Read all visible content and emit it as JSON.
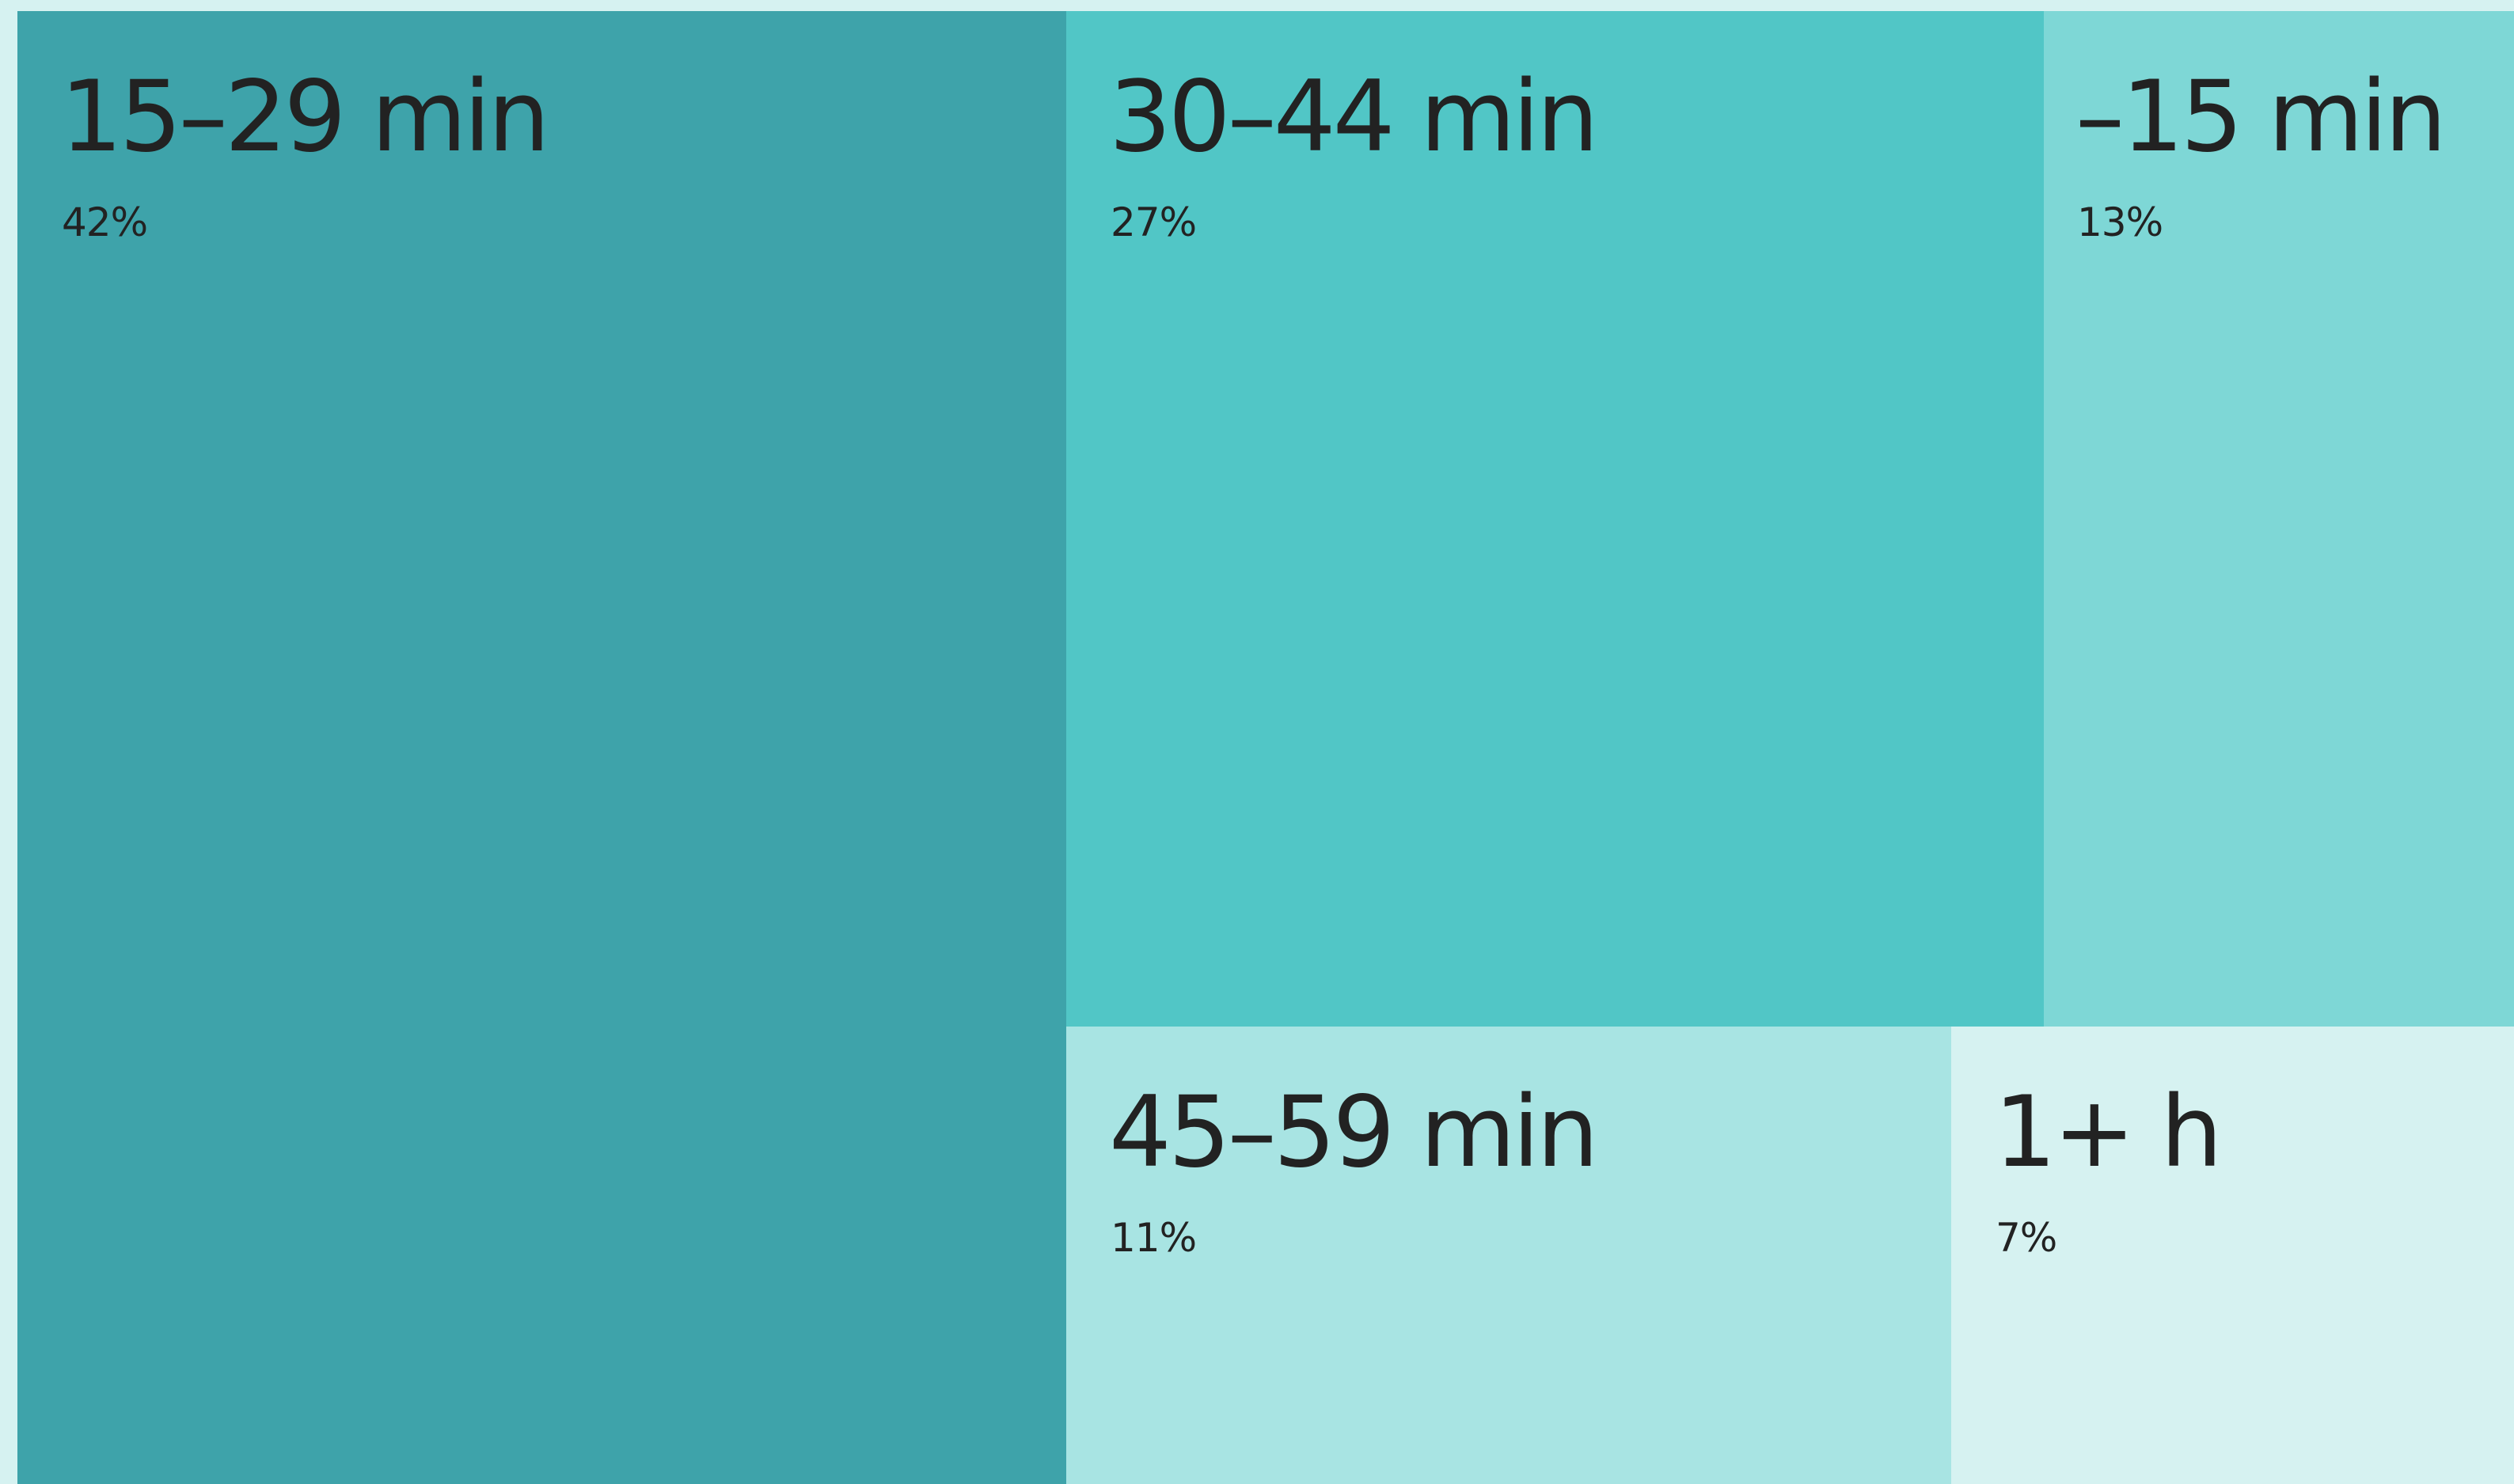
{
  "chart_data": {
    "type": "treemap",
    "title": "",
    "items": [
      {
        "label": "15–29 min",
        "value": 42,
        "value_label": "42%",
        "color": "#3ea3aa"
      },
      {
        "label": "30–44 min",
        "value": 27,
        "value_label": "27%",
        "color": "#51c6c6"
      },
      {
        "label": "–15 min",
        "value": 13,
        "value_label": "13%",
        "color": "#7ed7d6"
      },
      {
        "label": "45–59 min",
        "value": 11,
        "value_label": "11%",
        "color": "#a8e4e3"
      },
      {
        "label": "1+ h",
        "value": 7,
        "value_label": "7%",
        "color": "#d6f2f1"
      }
    ]
  }
}
